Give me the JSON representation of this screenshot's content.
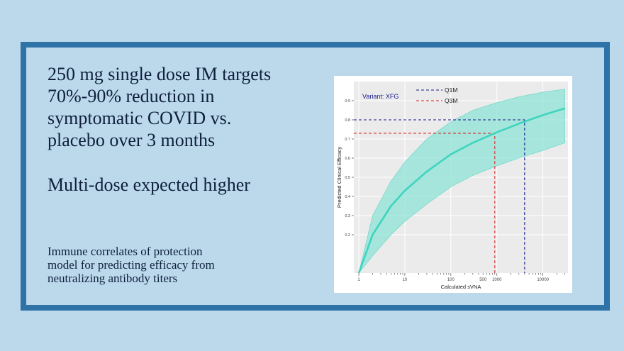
{
  "slide": {
    "headline_lines": [
      "250 mg single dose IM targets",
      "70%-90% reduction in",
      "symptomatic COVID vs.",
      "placebo over 3 months"
    ],
    "subhead": "Multi-dose expected higher",
    "caption_lines": [
      "Immune correlates of protection",
      "model for predicting efficacy from",
      "neutralizing antibody titers"
    ]
  },
  "colors": {
    "background": "#bcd9ec",
    "frame_border": "#2e72a8",
    "text": "#0f1f3c",
    "curve": "#3fd4c0",
    "band": "#8fe3d6",
    "q1m": "#1a1a8a",
    "q3m": "#d62828",
    "panel": "#ebebeb"
  },
  "chart_data": {
    "type": "line",
    "title": "",
    "annotation": "Variant: XFG",
    "xlabel": "Calculated sVNA",
    "ylabel": "Predicted Clinical Efficacy",
    "xscale": "log",
    "xlim": [
      0.78,
      35000
    ],
    "ylim": [
      0.0,
      1.0
    ],
    "x_ticks": [
      1,
      10,
      100,
      500,
      1000,
      10000
    ],
    "x_tick_labels": [
      "1",
      "10",
      "100",
      "500",
      "1000",
      "10000"
    ],
    "y_ticks": [
      0.2,
      0.3,
      0.4,
      0.5,
      0.6,
      0.7,
      0.8,
      0.9
    ],
    "y_tick_labels": [
      "0.2",
      "0.3",
      "0.4",
      "0.5",
      "0.6",
      "0.7",
      "0.8",
      "0.9"
    ],
    "grid": true,
    "legend_position": "top-right",
    "series": [
      {
        "name": "Predicted efficacy",
        "x": [
          1,
          2,
          5,
          10,
          30,
          100,
          300,
          1000,
          3000,
          10000,
          30000
        ],
        "y": [
          0.0,
          0.2,
          0.35,
          0.43,
          0.53,
          0.62,
          0.68,
          0.735,
          0.78,
          0.825,
          0.86
        ],
        "lower": [
          0.0,
          0.09,
          0.2,
          0.27,
          0.36,
          0.45,
          0.51,
          0.56,
          0.6,
          0.64,
          0.68
        ],
        "upper": [
          0.0,
          0.3,
          0.48,
          0.58,
          0.7,
          0.79,
          0.85,
          0.89,
          0.92,
          0.945,
          0.96
        ]
      }
    ],
    "reference_lines": [
      {
        "name": "Q1M",
        "x": 4000,
        "y": 0.8
      },
      {
        "name": "Q3M",
        "x": 900,
        "y": 0.73
      }
    ]
  }
}
